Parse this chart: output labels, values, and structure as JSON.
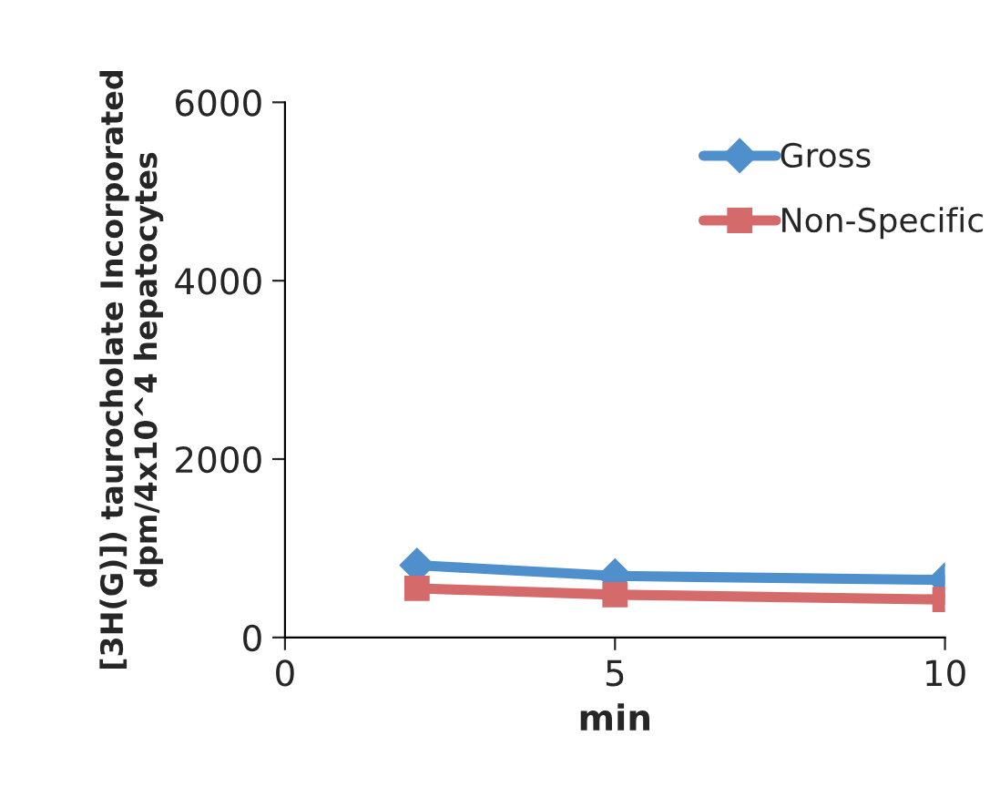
{
  "chart_data": {
    "type": "line",
    "xlabel": "min",
    "ylabel": "[3H(G)]) taurocholate Incorporated\ndpm/4x10^4 hepatocytes",
    "x": [
      2,
      5,
      10
    ],
    "series": [
      {
        "name": "Gross",
        "color": "#4f8fcc",
        "marker": "diamond",
        "values": [
          810,
          690,
          645
        ]
      },
      {
        "name": "Non-Specific",
        "color": "#d46a6a",
        "marker": "square",
        "values": [
          550,
          480,
          425
        ]
      }
    ],
    "xlim": [
      0,
      10
    ],
    "xticks": [
      0,
      5,
      10
    ],
    "ylim": [
      0,
      6000
    ],
    "yticks": [
      0,
      2000,
      4000,
      6000
    ],
    "grid": false,
    "legend": "top right",
    "line_style": "solid"
  }
}
